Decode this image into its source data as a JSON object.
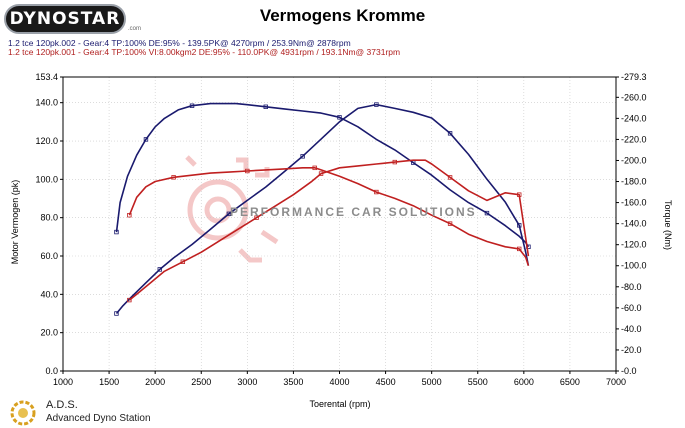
{
  "header": {
    "logo_text": "DYNOSTAR",
    "logo_dotcom": ".com",
    "title": "Vermogens Kromme",
    "run1": "1.2 tce 120pk.002 - Gear:4 TP:100% DE:95%   - 139.5PK@ 4270rpm / 253.9Nm@ 2878rpm",
    "run2": "1.2 tce 120pk.001 - Gear:4 TP:100% VI:8.00kgm2 DE:95%   - 110.0PK@ 4931rpm / 193.1Nm@ 3731rpm"
  },
  "footer": {
    "ads": "A.D.S.",
    "sub": "Advanced Dyno Station"
  },
  "watermark": {
    "text": "PERFORMANCE CAR SOLUTIONS"
  },
  "colors": {
    "run1": "#1a1a6e",
    "run2": "#c02020",
    "grid": "#c8c8c8"
  },
  "chart_data": {
    "type": "line",
    "title": "Vermogens Kromme",
    "xlabel": "Toerental (rpm)",
    "ylabel_left": "Motor Vermogen (pk)",
    "ylabel_right": "Torque (Nm)",
    "xlim": [
      1000,
      7000
    ],
    "xticks": [
      1000,
      1500,
      2000,
      2500,
      3000,
      3500,
      4000,
      4500,
      5000,
      5500,
      6000,
      6500,
      7000
    ],
    "ylim_left": [
      0,
      153.4
    ],
    "yticks_left": [
      0,
      20,
      40,
      60,
      80,
      100,
      120,
      140,
      153.4
    ],
    "ylim_right": [
      0,
      279.3
    ],
    "yticks_right": [
      0,
      20,
      40,
      60,
      80,
      100,
      120,
      140,
      160,
      180,
      200,
      220,
      240,
      260,
      279.3
    ],
    "grid": true,
    "series": [
      {
        "name": "1.2 tce 120pk.002 power",
        "axis": "left",
        "color": "#1a1a6e",
        "x": [
          1580,
          1650,
          1750,
          1900,
          2050,
          2200,
          2400,
          2600,
          2800,
          3000,
          3200,
          3400,
          3600,
          3800,
          4000,
          4200,
          4400,
          4600,
          4800,
          5000,
          5200,
          5400,
          5600,
          5800,
          5950,
          6020,
          6050
        ],
        "y": [
          30,
          34,
          39,
          46,
          53,
          59,
          66,
          74,
          82,
          89,
          96,
          104,
          112,
          121,
          130,
          137,
          139,
          137,
          135,
          132,
          124,
          113,
          100,
          88,
          76,
          62,
          55
        ]
      },
      {
        "name": "1.2 tce 120pk.002 torque",
        "axis": "right",
        "color": "#1a1a6e",
        "x": [
          1580,
          1620,
          1700,
          1800,
          1900,
          2000,
          2100,
          2250,
          2400,
          2600,
          2878,
          3000,
          3200,
          3400,
          3600,
          3800,
          4000,
          4200,
          4400,
          4600,
          4800,
          5000,
          5200,
          5400,
          5600,
          5800,
          5950,
          6020,
          6050
        ],
        "y": [
          132,
          160,
          185,
          205,
          220,
          232,
          240,
          248,
          252,
          254,
          254,
          253,
          251,
          249,
          247,
          245,
          241,
          232,
          220,
          210,
          198,
          186,
          172,
          160,
          150,
          138,
          128,
          122,
          118
        ]
      },
      {
        "name": "1.2 tce 120pk.001 power",
        "axis": "left",
        "color": "#c02020",
        "x": [
          1720,
          1800,
          1950,
          2100,
          2300,
          2500,
          2700,
          2900,
          3100,
          3300,
          3500,
          3700,
          3800,
          4000,
          4200,
          4400,
          4600,
          4800,
          4931,
          5000,
          5200,
          5400,
          5600,
          5800,
          5950,
          6050
        ],
        "y": [
          37,
          40,
          46,
          52,
          57,
          62,
          68,
          74,
          80,
          86,
          92,
          99,
          103,
          106,
          107,
          108,
          109,
          110,
          110,
          108,
          101,
          94,
          89,
          93,
          92,
          60
        ]
      },
      {
        "name": "1.2 tce 120pk.001 torque",
        "axis": "right",
        "color": "#c02020",
        "x": [
          1720,
          1800,
          1900,
          2000,
          2200,
          2400,
          2600,
          2800,
          3000,
          3200,
          3400,
          3600,
          3731,
          3800,
          4000,
          4200,
          4400,
          4600,
          4800,
          5000,
          5200,
          5400,
          5600,
          5800,
          5950,
          6020,
          6050
        ],
        "y": [
          148,
          165,
          175,
          180,
          184,
          186,
          188,
          189,
          190,
          191,
          192,
          193,
          193,
          191,
          185,
          178,
          170,
          164,
          157,
          148,
          140,
          130,
          123,
          118,
          116,
          108,
          100
        ]
      }
    ]
  }
}
